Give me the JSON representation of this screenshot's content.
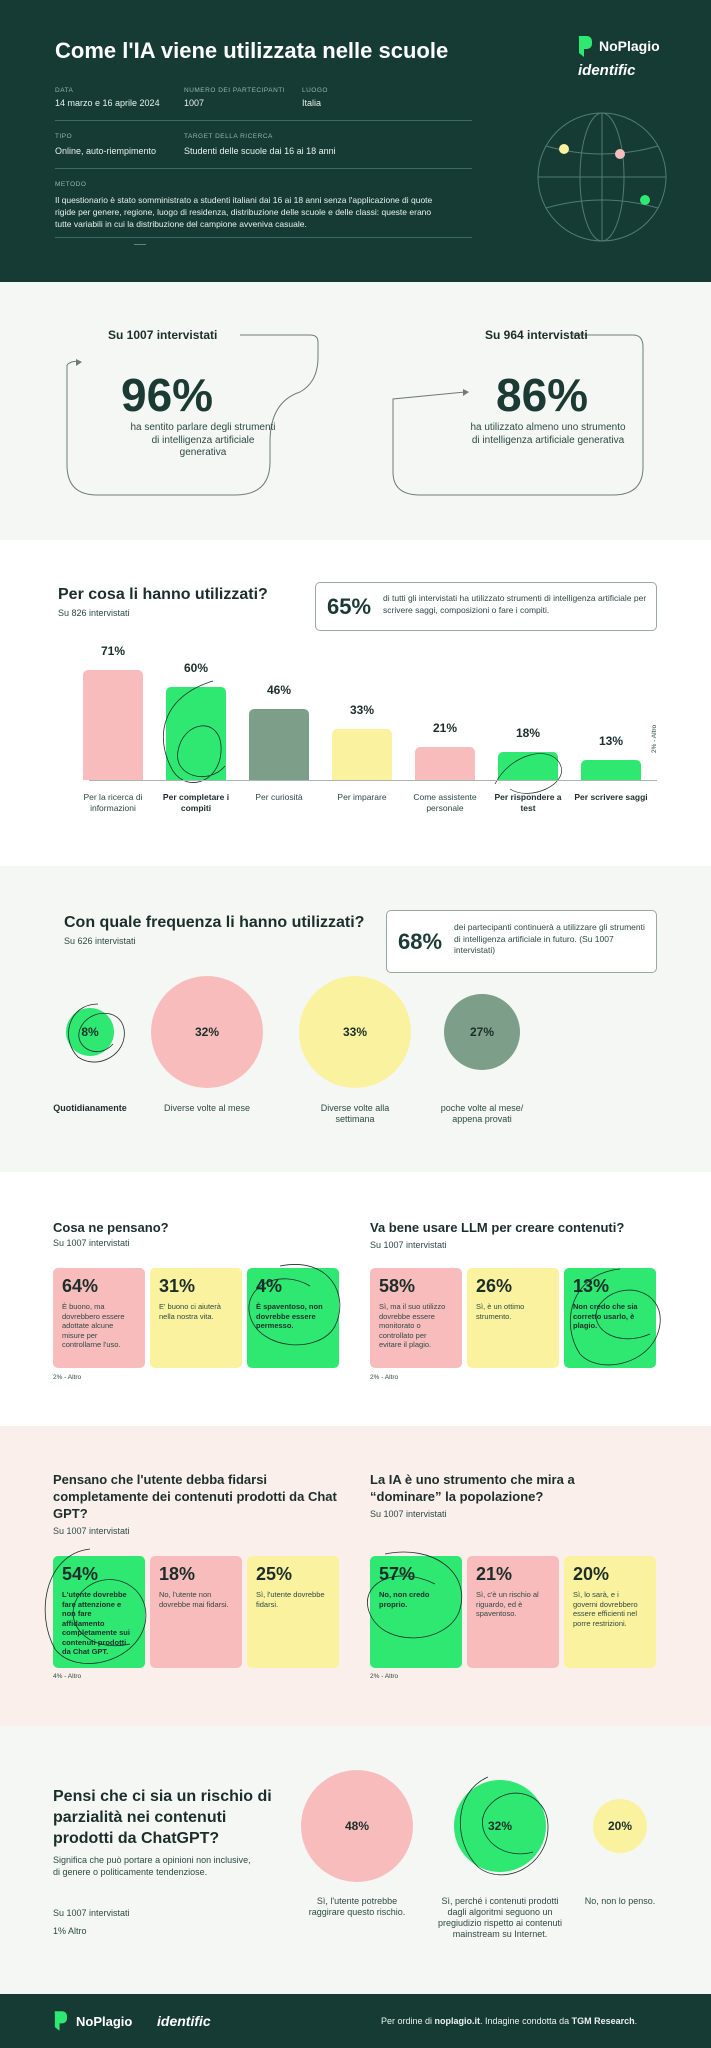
{
  "header": {
    "title": "Come l'IA viene utilizzata nelle scuole",
    "meta": [
      {
        "label": "DATA",
        "value": "14 marzo e 16 aprile 2024"
      },
      {
        "label": "NUMERO DEI PARTECIPANTI",
        "value": "1007"
      },
      {
        "label": "LUOGO",
        "value": "Italia"
      },
      {
        "label": "TIPO",
        "value": "Online, auto-riempimento"
      },
      {
        "label": "TARGET DELLA RICERCA",
        "value": "Studenti delle scuole dai 16 ai 18 anni"
      }
    ],
    "method_label": "METODO",
    "method_text": "Il questionario è stato somministrato a studenti italiani dai 16 ai 18 anni senza l'applicazione di quote rigide per genere, regione, luogo di residenza, distribuzione delle scuole e delle classi: queste erano tutte variabili in cui la distribuzione del campione avveniva casuale.",
    "brand_noplagio": "NoPlagio",
    "brand_identific": "identific"
  },
  "stats": [
    {
      "sub": "Su 1007 intervistati",
      "value": "96%",
      "desc": "ha sentito parlare degli strumenti di intelligenza artificiale generativa"
    },
    {
      "sub": "Su 964 intervistati",
      "value": "86%",
      "desc": "ha utilizzato almeno uno strumento di intelligenza artificiale generativa"
    }
  ],
  "usage": {
    "title": "Per cosa li hanno utilizzati?",
    "sub": "Su 826 intervistati",
    "callout_value": "65%",
    "callout_text": "di tutti gli intervistati ha utilizzato strumenti di intelligenza artificiale per scrivere saggi, composizioni o fare i compiti.",
    "other": "2% - Altro"
  },
  "chart_data": {
    "type": "bar",
    "title": "Per cosa li hanno utilizzati?",
    "categories": [
      "Per la ricerca di informazioni",
      "Per completare i compiti",
      "Per curiosità",
      "Per imparare",
      "Come assistente personale",
      "Per rispondere a test",
      "Per scrivere saggi"
    ],
    "values": [
      71,
      60,
      46,
      33,
      21,
      18,
      13
    ],
    "labels": [
      "71%",
      "60%",
      "46%",
      "33%",
      "21%",
      "18%",
      "13%"
    ],
    "colors": [
      "#f9bcbc",
      "#2ee872",
      "#7d9e89",
      "#fbf29f",
      "#f9bcbc",
      "#2ee872",
      "#2ee872"
    ],
    "ylim": [
      0,
      100
    ]
  },
  "frequency": {
    "title": "Con quale frequenza li hanno utilizzati?",
    "sub": "Su 626 intervistati",
    "callout_value": "68%",
    "callout_text": "dei partecipanti continuerà a utilizzare gli strumenti di intelligenza artificiale in futuro. (Su 1007 intervistati)",
    "items": [
      {
        "value": "8%",
        "label": "Quotidianamente",
        "pct": 8,
        "color": "#2ee872"
      },
      {
        "value": "32%",
        "label": "Diverse volte al mese",
        "pct": 32,
        "color": "#f9bcbc"
      },
      {
        "value": "33%",
        "label": "Diverse volte alla settimana",
        "pct": 33,
        "color": "#fbf29f"
      },
      {
        "value": "27%",
        "label": "poche volte al mese/ appena provati",
        "pct": 27,
        "color": "#7d9e89"
      }
    ]
  },
  "opinions": {
    "left": {
      "title": "Cosa ne pensano?",
      "sub": "Su 1007 intervistati",
      "cards": [
        {
          "pct": "64%",
          "text": "È buono, ma dovrebbero essere adottate alcune misure per controllarne l'uso."
        },
        {
          "pct": "31%",
          "text": "E' buono ci aiuterà nella nostra vita."
        },
        {
          "pct": "4%",
          "text": "È spaventoso, non dovrebbe essere permesso."
        }
      ],
      "other": "2% - Altro"
    },
    "right": {
      "title": "Va bene usare LLM per creare contenuti?",
      "sub": "Su 1007 intervistati",
      "cards": [
        {
          "pct": "58%",
          "text": "Sì, ma il suo utilizzo dovrebbe essere monitorato o controllato per evitare il plagio."
        },
        {
          "pct": "26%",
          "text": "Sì, è un ottimo strumento."
        },
        {
          "pct": "13%",
          "text": "Non credo che sia corretto usarlo, è plagio."
        }
      ],
      "other": "2% - Altro"
    }
  },
  "trust": {
    "left": {
      "title": "Pensano che l'utente debba fidarsi completamente dei contenuti prodotti da Chat GPT?",
      "sub": "Su 1007 intervistati",
      "cards": [
        {
          "pct": "54%",
          "text": "L'utente dovrebbe fare attenzione e non fare affidamento completamente sui contenuti prodotti da Chat GPT."
        },
        {
          "pct": "18%",
          "text": "No, l'utente non dovrebbe mai fidarsi."
        },
        {
          "pct": "25%",
          "text": "Sì, l'utente dovrebbe fidarsi."
        }
      ],
      "other": "4% - Altro"
    },
    "right": {
      "title": "La IA è uno strumento che mira a “dominare” la popolazione?",
      "sub": "Su 1007 intervistati",
      "cards": [
        {
          "pct": "57%",
          "text": "No, non credo proprio."
        },
        {
          "pct": "21%",
          "text": "Sì, c'è un rischio al riguardo, ed è spaventoso."
        },
        {
          "pct": "20%",
          "text": "Sì, lo sarà, e i governi dovrebbero essere efficienti nel porre restrizioni."
        }
      ],
      "other": "2% - Altro"
    }
  },
  "bias": {
    "title": "Pensi che ci sia un rischio di parzialità nei contenuti prodotti da ChatGPT?",
    "desc": "Significa che può portare a opinioni non inclusive, di genere o politicamente tendenziose.",
    "sub": "Su 1007 intervistati",
    "other": "1% Altro",
    "items": [
      {
        "value": "48%",
        "label": "Sì, l'utente potrebbe raggirare questo rischio.",
        "pct": 48,
        "color": "#f9bcbc"
      },
      {
        "value": "32%",
        "label": "Sì, perché i contenuti prodotti dagli algoritmi seguono un pregiudizio rispetto ai contenuti mainstream su Internet.",
        "pct": 32,
        "color": "#2ee872"
      },
      {
        "value": "20%",
        "label": "No, non lo penso.",
        "pct": 20,
        "color": "#fbf29f"
      }
    ]
  },
  "footer": {
    "brand_noplagio": "NoPlagio",
    "brand_identific": "identific",
    "text_pre": "Per ordine di ",
    "text_site": "noplagio.it",
    "text_mid": ". Indagine condotta da ",
    "text_org": "TGM Research",
    "text_end": "."
  },
  "colors": {
    "dark": "#163b34",
    "green": "#2ee872",
    "pink": "#f9bcbc",
    "yellow": "#fbf29f",
    "sage": "#7d9e89"
  }
}
